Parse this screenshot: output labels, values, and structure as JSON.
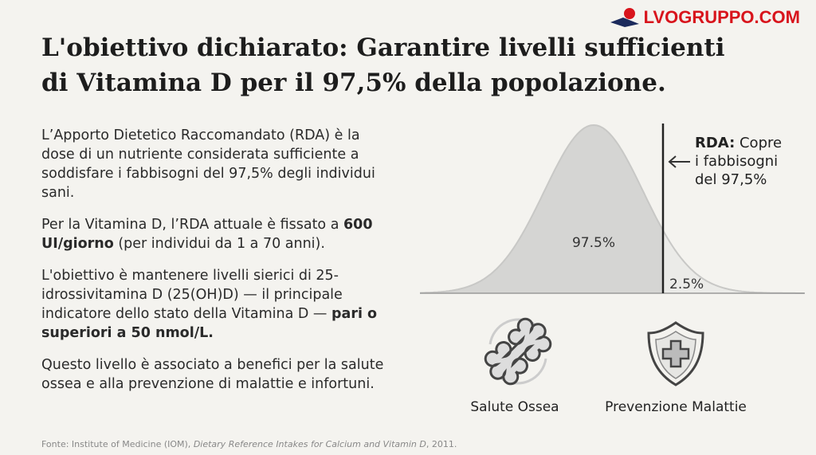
{
  "logo": "LVOGRUPPO.COM",
  "title": "L'obiettivo dichiarato: Garantire livelli sufficienti di Vitamina D per il 97,5% della popolazione.",
  "paragraphs": [
    {
      "runs": [
        {
          "text": "L’Apporto Dietetico Raccomandato (RDA) è la dose di un nutriente considerata sufficiente a soddisfare i fabbisogni del 97,5% degli individui sani.",
          "bold": false
        }
      ]
    },
    {
      "runs": [
        {
          "text": "Per la Vitamina D, l’RDA attuale è fissato a ",
          "bold": false
        },
        {
          "text": "600 UI/giorno",
          "bold": true
        },
        {
          "text": " (per individui da 1 a 70 anni).",
          "bold": false
        }
      ]
    },
    {
      "runs": [
        {
          "text": "L'obiettivo è mantenere livelli sierici di 25-idrossivitamina D (25(OH)D) — il principale indicatore dello stato della Vitamina D — ",
          "bold": false
        },
        {
          "text": "pari o superiori a 50 nmol/L.",
          "bold": true
        }
      ]
    },
    {
      "runs": [
        {
          "text": "Questo livello è associato a benefici per la salute ossea e alla prevenzione di malattie e infortuni.",
          "bold": false
        }
      ]
    }
  ],
  "curve": {
    "inside_label": "97.5%",
    "outside_label": "2.5%",
    "annotation_bold": "RDA:",
    "annotation_text": " Copre i fabbisogni del 97,5%"
  },
  "icons": [
    {
      "label": "Salute Ossea"
    },
    {
      "label": "Prevenzione Malattie"
    }
  ],
  "source": {
    "prefix": "Fonte: Institute of Medicine (IOM), ",
    "italic": "Dietary Reference Intakes for Calcium and Vitamin D",
    "suffix": ", 2011."
  }
}
